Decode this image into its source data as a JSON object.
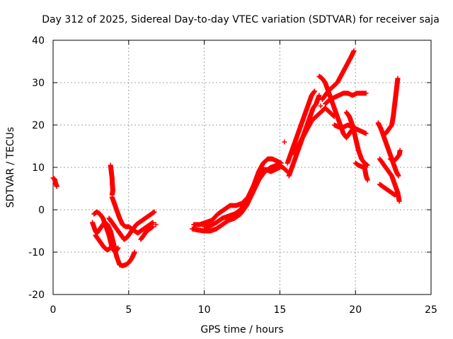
{
  "chart_data": {
    "type": "scatter",
    "title": "Day 312 of 2025, Sidereal Day-to-day VTEC variation (SDTVAR) for receiver saja",
    "xlabel": "GPS time / hours",
    "ylabel": "SDTVAR / TECUs",
    "xlim": [
      0,
      25
    ],
    "ylim": [
      -20,
      40
    ],
    "xticks": [
      0,
      5,
      10,
      15,
      20,
      25
    ],
    "yticks": [
      -20,
      -10,
      0,
      10,
      20,
      30,
      40
    ],
    "grid": true,
    "marker": "+",
    "series": [
      {
        "name": "SDTVAR",
        "color": "#ff0000",
        "tracks": [
          [
            [
              0.0,
              7.5
            ],
            [
              0.1,
              7.2
            ],
            [
              0.15,
              6.5
            ],
            [
              0.2,
              6.0
            ],
            [
              0.25,
              5.5
            ]
          ],
          [
            [
              2.6,
              -3
            ],
            [
              2.7,
              -4
            ],
            [
              2.8,
              -5
            ],
            [
              2.9,
              -5.5
            ],
            [
              3.0,
              -5
            ],
            [
              3.2,
              -4
            ],
            [
              3.4,
              -3
            ],
            [
              3.6,
              -3.5
            ],
            [
              3.8,
              -5
            ],
            [
              4.0,
              -8
            ],
            [
              4.2,
              -11
            ],
            [
              4.4,
              -13
            ],
            [
              4.6,
              -13.2
            ],
            [
              4.8,
              -13
            ],
            [
              5.0,
              -12.5
            ],
            [
              5.2,
              -11.5
            ],
            [
              5.4,
              -10
            ]
          ],
          [
            [
              2.7,
              -1
            ],
            [
              2.9,
              -0.5
            ],
            [
              3.1,
              -1
            ],
            [
              3.3,
              -2
            ],
            [
              3.5,
              -4
            ],
            [
              3.7,
              -6
            ],
            [
              3.9,
              -9
            ],
            [
              4.1,
              -10
            ],
            [
              4.3,
              -9
            ]
          ],
          [
            [
              2.8,
              -6
            ],
            [
              3.0,
              -7
            ],
            [
              3.2,
              -8
            ],
            [
              3.4,
              -9
            ],
            [
              3.6,
              -9.5
            ],
            [
              3.8,
              -9
            ]
          ],
          [
            [
              3.7,
              -2
            ],
            [
              3.9,
              -3
            ],
            [
              4.1,
              -4
            ],
            [
              4.3,
              -5
            ],
            [
              4.5,
              -6
            ],
            [
              4.7,
              -7
            ],
            [
              4.9,
              -6.5
            ],
            [
              5.1,
              -5.5
            ],
            [
              5.3,
              -4.5
            ],
            [
              5.5,
              -3.5
            ],
            [
              5.7,
              -3
            ],
            [
              5.9,
              -2.5
            ],
            [
              6.1,
              -2
            ],
            [
              6.3,
              -1.5
            ],
            [
              6.5,
              -1
            ],
            [
              6.7,
              -0.5
            ]
          ],
          [
            [
              3.8,
              10.5
            ],
            [
              3.85,
              9
            ],
            [
              3.9,
              7.5
            ],
            [
              3.92,
              6
            ],
            [
              3.95,
              4.5
            ],
            [
              3.9,
              3.5
            ]
          ],
          [
            [
              3.9,
              3
            ],
            [
              4.0,
              2
            ],
            [
              4.2,
              0
            ],
            [
              4.4,
              -2
            ],
            [
              4.6,
              -3.5
            ],
            [
              4.8,
              -4
            ],
            [
              5.0,
              -4
            ],
            [
              5.2,
              -4.5
            ],
            [
              5.4,
              -5
            ],
            [
              5.6,
              -5.5
            ],
            [
              5.8,
              -5
            ],
            [
              6.0,
              -4.5
            ],
            [
              6.2,
              -4
            ],
            [
              6.4,
              -3.5
            ],
            [
              6.6,
              -3
            ]
          ],
          [
            [
              5.8,
              -7
            ],
            [
              6.0,
              -6
            ],
            [
              6.2,
              -5
            ],
            [
              6.4,
              -4.5
            ],
            [
              6.6,
              -4
            ]
          ],
          [
            [
              9.2,
              -4.5
            ],
            [
              9.6,
              -4.8
            ],
            [
              10.0,
              -5
            ],
            [
              10.4,
              -5
            ],
            [
              10.8,
              -4.5
            ],
            [
              11.2,
              -3.5
            ],
            [
              11.6,
              -2.5
            ],
            [
              12.0,
              -2
            ],
            [
              12.4,
              -1
            ],
            [
              12.8,
              1
            ],
            [
              13.2,
              4
            ],
            [
              13.6,
              7
            ],
            [
              14.0,
              9
            ],
            [
              14.4,
              10
            ],
            [
              14.8,
              10.5
            ],
            [
              15.2,
              10
            ],
            [
              15.5,
              9
            ]
          ],
          [
            [
              9.3,
              -3.5
            ],
            [
              9.7,
              -3.5
            ],
            [
              10.1,
              -3
            ],
            [
              10.5,
              -2.5
            ],
            [
              10.9,
              -1
            ],
            [
              11.3,
              0
            ],
            [
              11.7,
              1
            ],
            [
              12.1,
              1
            ],
            [
              12.5,
              1.5
            ],
            [
              12.9,
              3
            ],
            [
              13.3,
              6
            ],
            [
              13.6,
              9
            ],
            [
              13.9,
              11
            ],
            [
              14.2,
              12
            ],
            [
              14.5,
              12
            ],
            [
              14.8,
              11.5
            ],
            [
              15.1,
              11
            ]
          ],
          [
            [
              10.0,
              -4
            ],
            [
              10.4,
              -3.8
            ],
            [
              10.8,
              -3
            ],
            [
              11.2,
              -2
            ],
            [
              11.6,
              -1.5
            ],
            [
              12.0,
              -1
            ],
            [
              12.4,
              0
            ],
            [
              12.8,
              2
            ],
            [
              13.2,
              5
            ],
            [
              13.5,
              8
            ],
            [
              13.8,
              9.5
            ],
            [
              14.1,
              9.5
            ],
            [
              14.4,
              9
            ],
            [
              14.7,
              9.5
            ],
            [
              15.0,
              10
            ]
          ],
          [
            [
              15.6,
              8
            ],
            [
              15.8,
              10
            ],
            [
              16.0,
              12
            ],
            [
              16.2,
              14
            ],
            [
              16.4,
              16
            ],
            [
              16.6,
              18
            ],
            [
              16.8,
              20
            ],
            [
              17.0,
              22
            ],
            [
              17.2,
              24
            ],
            [
              17.4,
              25
            ],
            [
              17.6,
              27
            ]
          ],
          [
            [
              15.5,
              11
            ],
            [
              15.7,
              13
            ],
            [
              15.9,
              15
            ],
            [
              16.1,
              17
            ],
            [
              16.3,
              19
            ],
            [
              16.5,
              21
            ],
            [
              16.7,
              23
            ],
            [
              16.9,
              25
            ],
            [
              17.1,
              27
            ],
            [
              17.3,
              28
            ]
          ],
          [
            [
              16.0,
              13
            ],
            [
              16.2,
              15
            ],
            [
              16.5,
              17
            ],
            [
              16.8,
              19
            ],
            [
              17.1,
              21
            ],
            [
              17.4,
              22
            ],
            [
              17.7,
              23
            ],
            [
              18.0,
              24
            ],
            [
              18.3,
              23
            ],
            [
              18.6,
              22
            ]
          ],
          [
            [
              17.8,
              26
            ],
            [
              18.0,
              27
            ],
            [
              18.2,
              28
            ],
            [
              18.5,
              29
            ],
            [
              18.8,
              30
            ],
            [
              19.1,
              32
            ],
            [
              19.4,
              34
            ],
            [
              19.7,
              36
            ],
            [
              19.9,
              37.5
            ]
          ],
          [
            [
              17.6,
              31.5
            ],
            [
              17.8,
              31
            ],
            [
              18.0,
              30
            ],
            [
              18.2,
              28
            ],
            [
              18.4,
              26
            ],
            [
              18.6,
              24
            ],
            [
              18.8,
              22
            ],
            [
              19.0,
              20
            ],
            [
              19.2,
              18
            ],
            [
              19.4,
              17
            ],
            [
              19.6,
              18
            ],
            [
              19.8,
              19
            ]
          ],
          [
            [
              18.0,
              25
            ],
            [
              18.3,
              26
            ],
            [
              18.6,
              26.5
            ],
            [
              18.9,
              27
            ],
            [
              19.2,
              27.5
            ],
            [
              19.5,
              27.5
            ],
            [
              19.8,
              27
            ],
            [
              20.1,
              27.5
            ],
            [
              20.4,
              27.5
            ],
            [
              20.7,
              27.5
            ]
          ],
          [
            [
              18.6,
              20
            ],
            [
              18.9,
              19.5
            ],
            [
              19.2,
              19.5
            ],
            [
              19.5,
              20
            ],
            [
              19.8,
              19.5
            ],
            [
              20.1,
              19
            ],
            [
              20.4,
              18.5
            ],
            [
              20.7,
              18
            ]
          ],
          [
            [
              19.4,
              23
            ],
            [
              19.6,
              22
            ],
            [
              19.8,
              20
            ],
            [
              20.0,
              17
            ],
            [
              20.2,
              14
            ],
            [
              20.4,
              12
            ],
            [
              20.6,
              11
            ],
            [
              20.8,
              10.5
            ]
          ],
          [
            [
              20.0,
              11
            ],
            [
              20.2,
              10.5
            ],
            [
              20.4,
              10.2
            ],
            [
              20.6,
              10
            ],
            [
              20.7,
              8
            ],
            [
              20.8,
              7
            ]
          ],
          [
            [
              21.5,
              20.5
            ],
            [
              21.7,
              19
            ],
            [
              21.9,
              17
            ],
            [
              22.1,
              15
            ],
            [
              22.3,
              13
            ],
            [
              22.5,
              11
            ],
            [
              22.7,
              9
            ],
            [
              22.85,
              8
            ]
          ],
          [
            [
              21.6,
              12
            ],
            [
              21.8,
              11
            ],
            [
              22.0,
              10
            ],
            [
              22.2,
              9
            ],
            [
              22.4,
              8
            ],
            [
              22.6,
              6
            ],
            [
              22.8,
              4
            ],
            [
              22.9,
              2
            ]
          ],
          [
            [
              21.6,
              6
            ],
            [
              21.8,
              5.5
            ],
            [
              22.0,
              5
            ],
            [
              22.2,
              4.5
            ],
            [
              22.4,
              4
            ],
            [
              22.6,
              3.5
            ],
            [
              22.8,
              4
            ]
          ],
          [
            [
              22.0,
              18
            ],
            [
              22.2,
              19
            ],
            [
              22.4,
              20
            ],
            [
              22.5,
              22
            ],
            [
              22.6,
              25
            ],
            [
              22.7,
              28
            ],
            [
              22.8,
              31
            ]
          ],
          [
            [
              22.3,
              12
            ],
            [
              22.5,
              11.5
            ],
            [
              22.7,
              12
            ],
            [
              22.9,
              13
            ],
            [
              22.95,
              14
            ]
          ]
        ]
      }
    ],
    "isolated_points": [
      [
        15.3,
        16
      ],
      [
        17.7,
        24.5
      ],
      [
        6.8,
        -3.5
      ]
    ]
  }
}
